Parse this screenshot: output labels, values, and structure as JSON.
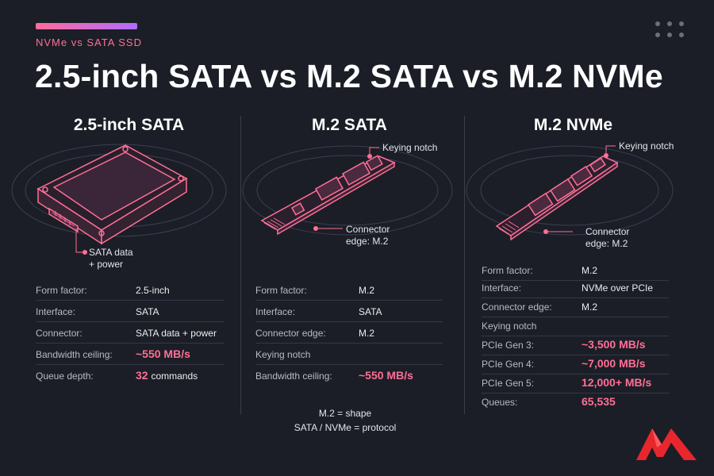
{
  "header": {
    "eyebrow": "NVMe vs SATA SSD",
    "title": "2.5-inch SATA vs M.2 SATA vs M.2 NVMe"
  },
  "colors": {
    "accent_pink": "#ff6f96",
    "accent_purple": "#b06cff",
    "background": "#1b1e26",
    "logo_red": "#e8262e"
  },
  "icons": [
    "menu-dots-icon",
    "brand-logo-icon"
  ],
  "columns": [
    {
      "title": "2.5-inch SATA",
      "callouts": [
        {
          "text": "SATA data\n+ power"
        }
      ],
      "specs": [
        {
          "label": "Form factor:",
          "value": "2.5-inch"
        },
        {
          "label": "Interface:",
          "value": "SATA"
        },
        {
          "label": "Connector:",
          "value": "SATA data + power"
        },
        {
          "label": "Bandwidth ceiling:",
          "value": "~550 MB/s",
          "highlight": true
        },
        {
          "label": "Queue depth:",
          "value": "32",
          "suffix": "commands",
          "highlight": true
        }
      ]
    },
    {
      "title": "M.2 SATA",
      "callouts": [
        {
          "text": "Keying notch"
        },
        {
          "text": "Connector\nedge: M.2"
        }
      ],
      "specs": [
        {
          "label": "Form factor:",
          "value": "M.2"
        },
        {
          "label": "Interface:",
          "value": "SATA"
        },
        {
          "label": "Connector edge:",
          "value": "M.2"
        },
        {
          "label": "Keying notch",
          "value": ""
        },
        {
          "label": "Bandwidth ceiling:",
          "value": "~550 MB/s",
          "highlight": true
        }
      ],
      "footnote": [
        "M.2 = shape",
        "SATA / NVMe = protocol"
      ]
    },
    {
      "title": "M.2 NVMe",
      "callouts": [
        {
          "text": "Keying notch"
        },
        {
          "text": "Connector\nedge: M.2"
        }
      ],
      "specs": [
        {
          "label": "Form factor:",
          "value": "M.2"
        },
        {
          "label": "Interface:",
          "value": "NVMe over PCIe"
        },
        {
          "label": "Connector edge:",
          "value": "M.2"
        },
        {
          "label": "Keying notch",
          "value": ""
        },
        {
          "label": "PCIe Gen 3:",
          "value": "~3,500 MB/s",
          "highlight": true
        },
        {
          "label": "PCIe Gen 4:",
          "value": "~7,000 MB/s",
          "highlight": true
        },
        {
          "label": "PCIe Gen 5:",
          "value": "12,000+ MB/s",
          "highlight": true
        },
        {
          "label": "Queues:",
          "value": "65,535",
          "highlight": true
        }
      ]
    }
  ]
}
